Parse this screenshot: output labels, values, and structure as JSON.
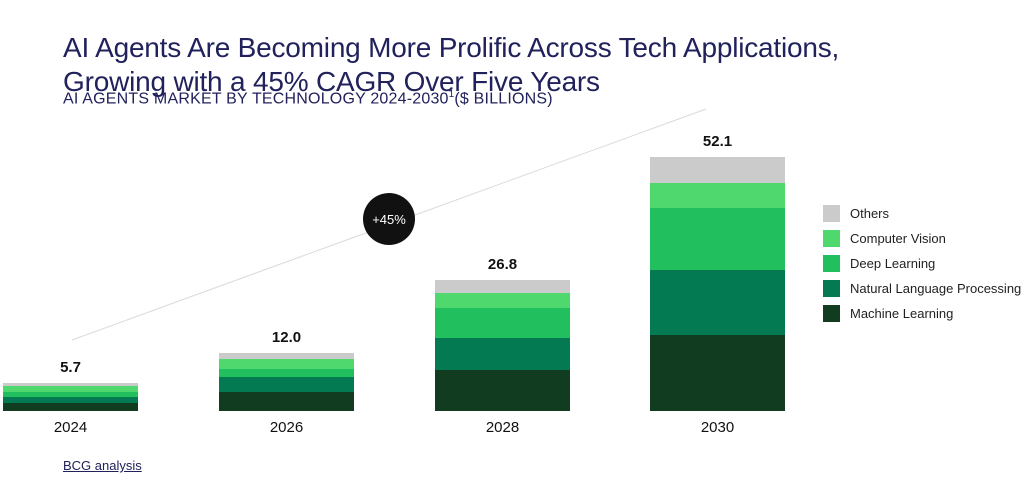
{
  "header": {
    "title_line1": "AI Agents Are Becoming More Prolific Across Tech Applications,",
    "title_line2": "Growing with a 45% CAGR Over Five Years",
    "subtitle_text": "AI AGENTS MARKET BY TECHNOLOGY 2024-2030",
    "subtitle_footnote_marker": "1",
    "subtitle_units": "($ BILLIONS)"
  },
  "chart_data": {
    "type": "bar",
    "stacked": true,
    "title": "AI AGENTS MARKET BY TECHNOLOGY 2024-2030 ($ BILLIONS)",
    "xlabel": "",
    "ylabel": "$ Billions",
    "categories": [
      "2024",
      "2026",
      "2028",
      "2030"
    ],
    "series": [
      {
        "name": "Machine Learning",
        "color": "#123c20",
        "values": [
          1.6,
          3.9,
          8.4,
          15.6
        ]
      },
      {
        "name": "Natural Language Processing",
        "color": "#047a52",
        "values": [
          1.2,
          3.0,
          6.6,
          13.3
        ]
      },
      {
        "name": "Deep Learning",
        "color": "#22bf5e",
        "values": [
          1.1,
          1.8,
          6.2,
          12.7
        ]
      },
      {
        "name": "Computer Vision",
        "color": "#4fd86d",
        "values": [
          1.3,
          1.9,
          3.0,
          5.3
        ]
      },
      {
        "name": "Others",
        "color": "#cbcbcb",
        "values": [
          0.5,
          1.4,
          2.6,
          5.2
        ]
      }
    ],
    "totals": [
      5.7,
      12.0,
      26.8,
      52.1
    ],
    "total_labels": [
      "5.7",
      "12.0",
      "26.8",
      "52.1"
    ],
    "annotation": "+45%",
    "legend_position": "right",
    "legend_order": [
      "Others",
      "Computer Vision",
      "Deep Learning",
      "Natural Language Processing",
      "Machine Learning"
    ],
    "grid": false,
    "ylim": [
      0,
      55
    ]
  },
  "footer": {
    "source_label": "BCG analysis"
  },
  "colors": {
    "title_text": "#21215c",
    "value_text": "#111111",
    "badge_background": "#111111",
    "badge_text": "#ffffff",
    "trend_line": "#dadada"
  }
}
